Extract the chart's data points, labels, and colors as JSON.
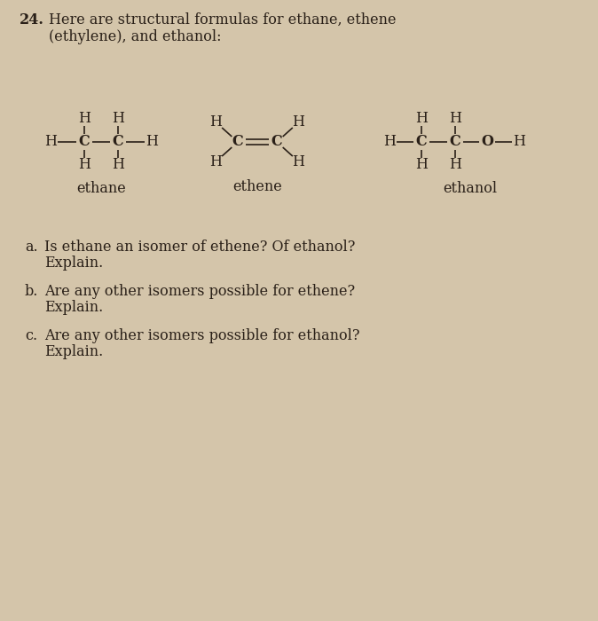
{
  "background_color": "#d4c5aa",
  "text_color": "#2a2018",
  "title_num": "24.",
  "title_line1": "Here are structural formulas for ethane, ethene",
  "title_line2": "(ethylene), and ethanol:",
  "label_ethane": "ethane",
  "label_ethene": "ethene",
  "label_ethanol": "ethanol",
  "qa1": "a.  Is ethane an isomer of ethene? Of ethanol?",
  "qa2": "     Explain.",
  "qb1": "b.  Are any other isomers possible for ethene?",
  "qb2": "     Explain.",
  "qc1": "c.  Are any other isomers possible for ethanol?",
  "qc2": "     Explain.",
  "font_size_title": 11.5,
  "font_size_formula": 11.5,
  "font_size_label": 11.5,
  "font_size_question": 11.5,
  "fig_width": 6.74,
  "fig_height": 7.0,
  "dpi": 100
}
